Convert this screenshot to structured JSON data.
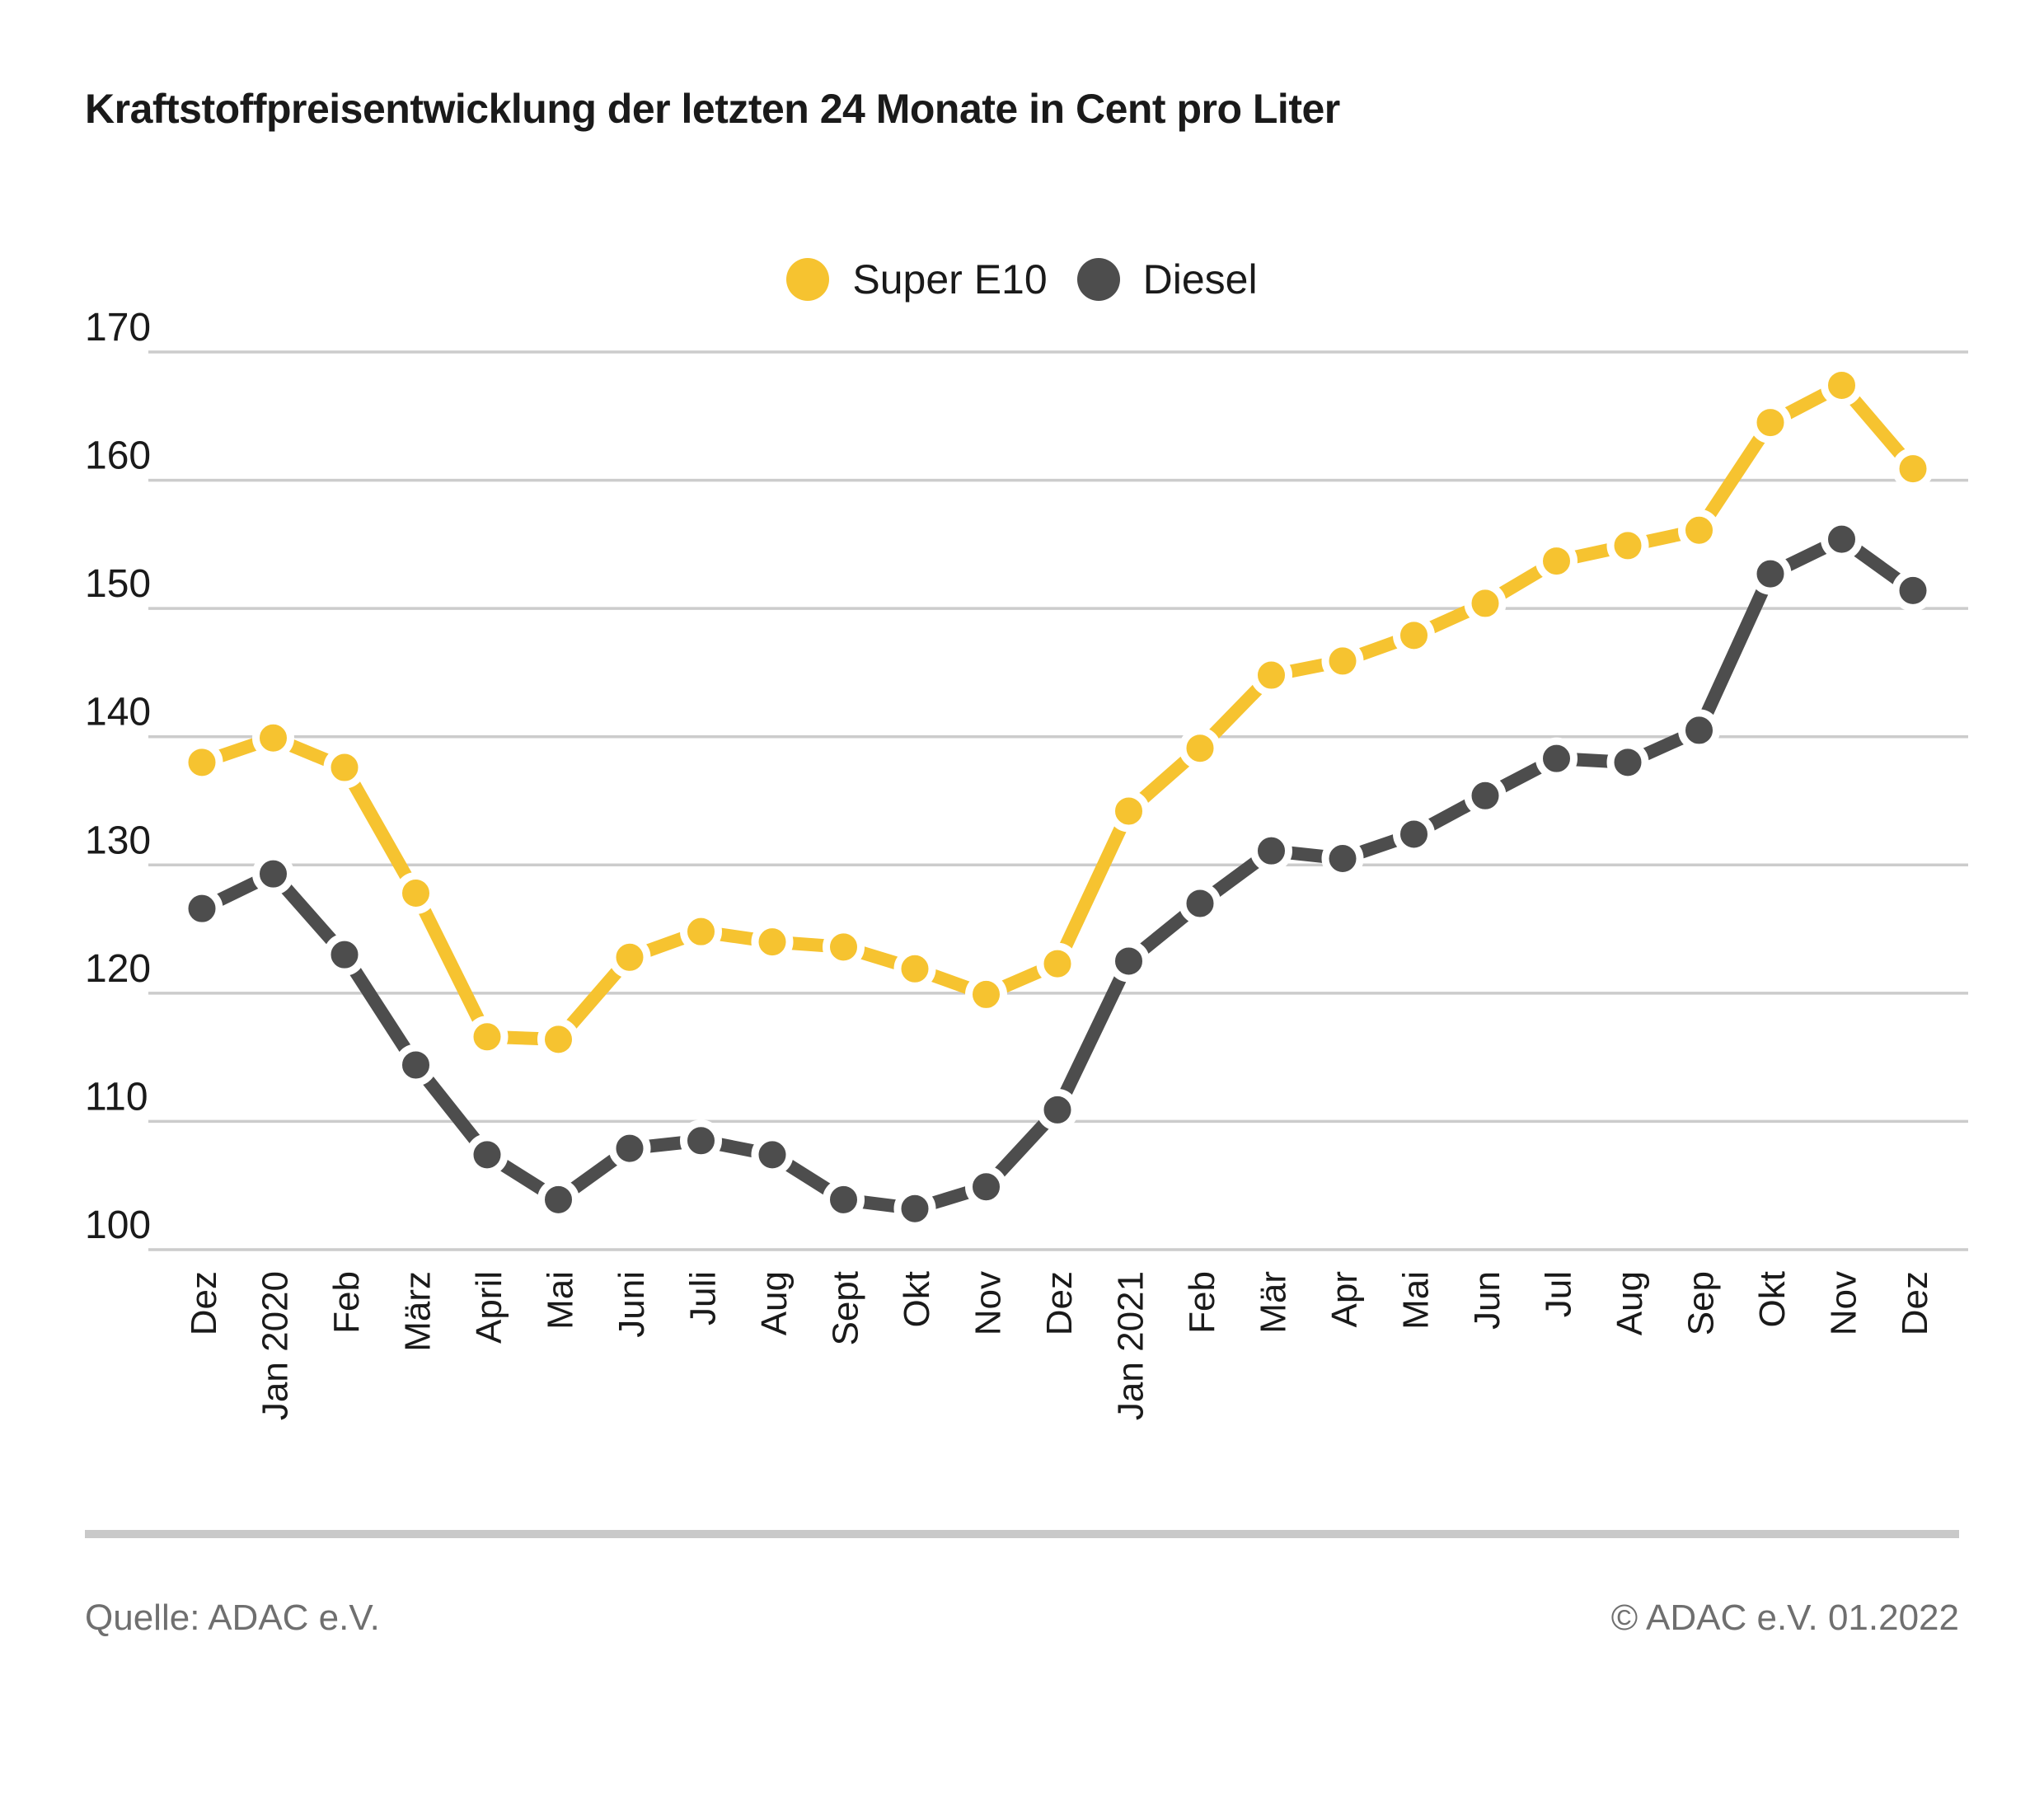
{
  "title": "Kraftstoffpreisentwicklung der letzten 24 Monate in Cent pro Liter",
  "legend": {
    "items": [
      {
        "label": "Super E10",
        "color": "#F6C330"
      },
      {
        "label": "Diesel",
        "color": "#4D4D4D"
      }
    ]
  },
  "footer": {
    "source": "Quelle: ADAC e.V.",
    "copyright": "© ADAC e.V. 01.2022"
  },
  "colors": {
    "grid": "#cccccc",
    "axis_text": "#1a1a1a",
    "marker_halo": "#ffffff"
  },
  "chart_data": {
    "type": "line",
    "title": "Kraftstoffpreisentwicklung der letzten 24 Monate in Cent pro Liter",
    "xlabel": "",
    "ylabel": "Cent pro Liter",
    "ylim": [
      100,
      170
    ],
    "yticks": [
      100,
      110,
      120,
      130,
      140,
      150,
      160,
      170
    ],
    "grid": true,
    "legend_position": "top-center",
    "categories": [
      "Dez",
      "Jan 2020",
      "Feb",
      "März",
      "April",
      "Mai",
      "Juni",
      "Juli",
      "Aug",
      "Sept",
      "Okt",
      "Nov",
      "Dez",
      "Jan 2021",
      "Feb",
      "Mär",
      "Apr",
      "Mai",
      "Jun",
      "Jul",
      "Aug",
      "Sep",
      "Okt",
      "Nov",
      "Dez"
    ],
    "series": [
      {
        "name": "Super E10",
        "color": "#F6C330",
        "values": [
          138.0,
          139.9,
          137.6,
          127.8,
          116.6,
          116.4,
          122.8,
          124.8,
          124.0,
          123.6,
          121.9,
          119.9,
          122.3,
          134.2,
          139.1,
          144.8,
          145.9,
          147.9,
          150.4,
          153.7,
          154.9,
          156.1,
          164.5,
          167.4,
          160.9
        ]
      },
      {
        "name": "Diesel",
        "color": "#4D4D4D",
        "values": [
          126.6,
          129.3,
          123.0,
          114.4,
          107.4,
          103.9,
          107.9,
          108.5,
          107.4,
          103.9,
          103.2,
          104.9,
          110.9,
          122.5,
          127.0,
          131.1,
          130.5,
          132.4,
          135.4,
          138.3,
          138.0,
          140.5,
          152.7,
          155.4,
          151.4
        ]
      }
    ]
  }
}
